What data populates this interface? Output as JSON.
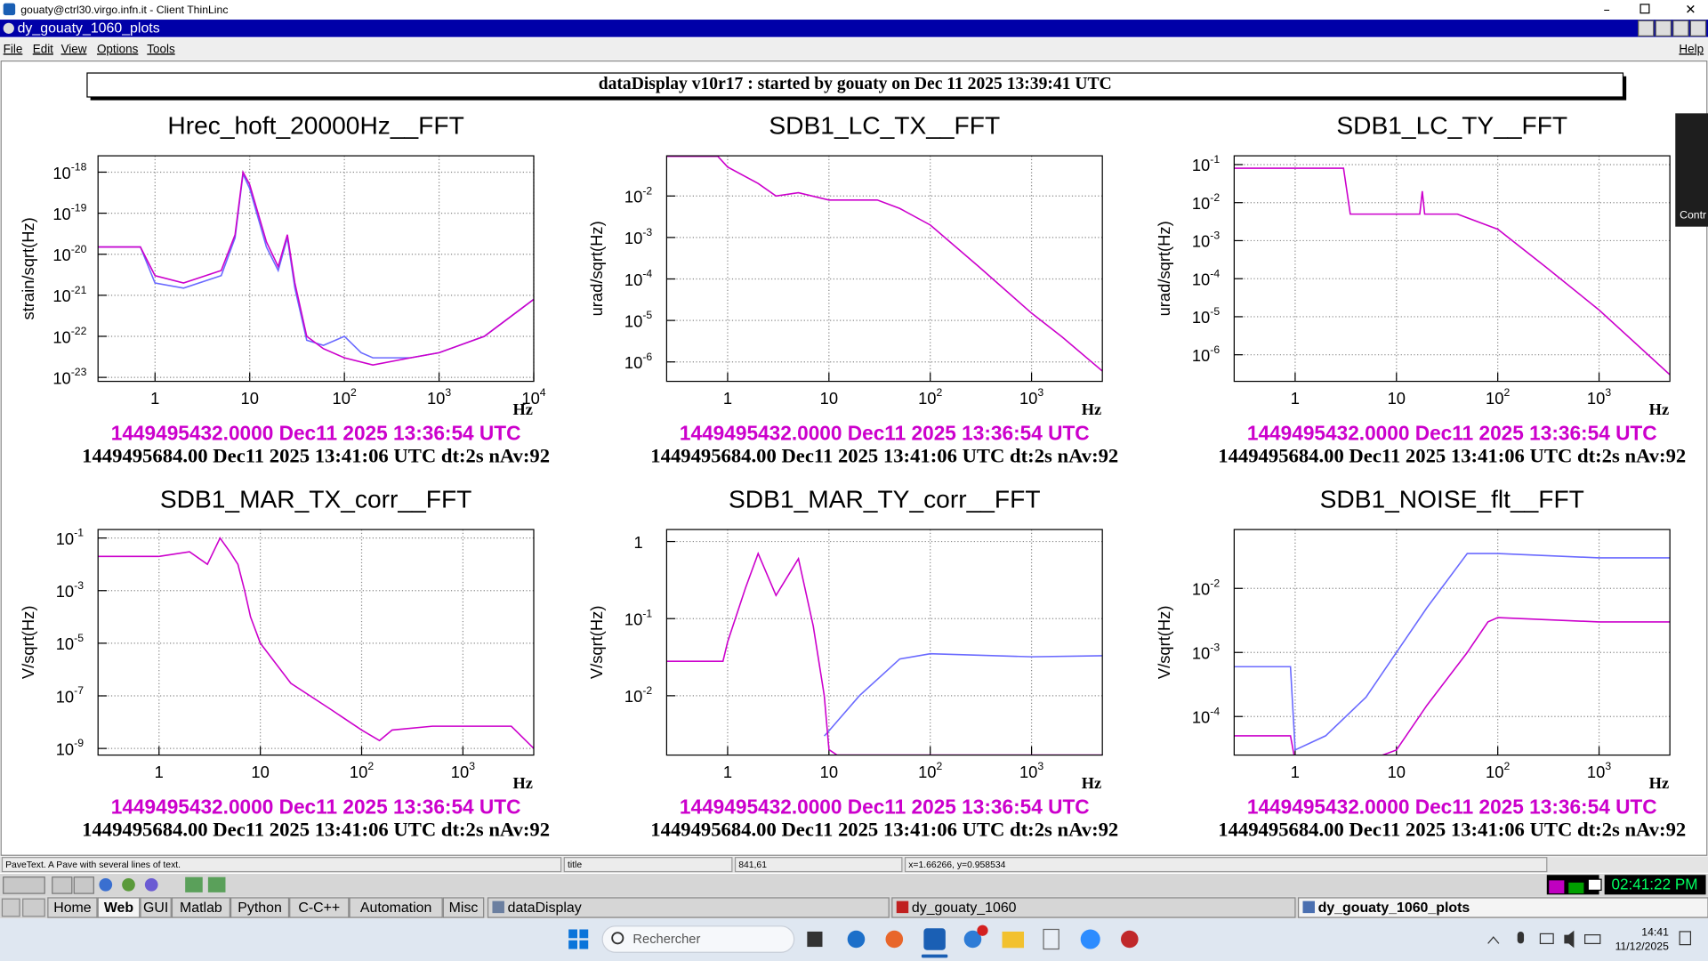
{
  "window": {
    "title": "gouaty@ctrl30.virgo.infn.it - Client ThinLinc",
    "app_title": "dy_gouaty_1060_plots",
    "menu": [
      "File",
      "Edit",
      "View",
      "Options",
      "Tools"
    ],
    "help": "Help"
  },
  "header": "dataDisplay v10r17 : started by gouaty on Dec 11 2025 13:39:41 UTC",
  "side_tab": "Contr",
  "plots": [
    {
      "title": "Hrec_hoft_20000Hz__FFT",
      "ylabel": "strain/sqrt(Hz)",
      "xlabel": "Hz",
      "log": true,
      "xlim": [
        0.25,
        10000
      ],
      "ylim": [
        8e-24,
        2.5e-18
      ],
      "xticks": [
        1,
        10,
        {
          "value": 100,
          "label": "10",
          "exponent": "2"
        },
        {
          "value": 1000,
          "label": "10",
          "exponent": "3"
        },
        {
          "value": 10000,
          "label": "10",
          "exponent": "4"
        }
      ],
      "yticks": [
        {
          "value": 1e-18,
          "label": "10",
          "exponent": "-18"
        },
        {
          "value": 1e-19,
          "label": "10",
          "exponent": "-19"
        },
        {
          "value": 1e-20,
          "label": "10",
          "exponent": "-20"
        },
        {
          "value": 1e-21,
          "label": "10",
          "exponent": "-21"
        },
        {
          "value": 1e-22,
          "label": "10",
          "exponent": "-22"
        },
        {
          "value": 1e-23,
          "label": "10",
          "exponent": "-23"
        }
      ],
      "series": [
        {
          "color": "#6a6aff",
          "x": [
            0.25,
            0.7,
            1,
            2,
            5,
            7,
            8.5,
            10,
            15,
            20,
            25,
            30,
            40,
            60,
            100,
            150,
            200,
            500,
            1000,
            3000,
            10000
          ],
          "values": [
            1.5e-20,
            1.5e-20,
            2e-21,
            1.5e-21,
            3e-21,
            2.5e-20,
            9e-19,
            4e-19,
            1.5e-20,
            4e-21,
            2.5e-20,
            1.5e-21,
            8e-23,
            6e-23,
            1e-22,
            4e-23,
            3e-23,
            3e-23,
            4e-23,
            1e-22,
            8e-22
          ]
        },
        {
          "color": "#cc00cc",
          "x": [
            0.25,
            0.7,
            1,
            2,
            5,
            7,
            8.5,
            10,
            15,
            20,
            25,
            30,
            40,
            60,
            100,
            200,
            500,
            1000,
            3000,
            10000
          ],
          "values": [
            1.5e-20,
            1.5e-20,
            3e-21,
            2e-21,
            4e-21,
            3e-20,
            1e-18,
            5e-19,
            2e-20,
            5e-21,
            3e-20,
            2e-21,
            1e-22,
            5e-23,
            3e-23,
            2e-23,
            3e-23,
            4e-23,
            1e-22,
            8e-22
          ]
        }
      ],
      "time_start": "1449495432.0000 Dec11 2025 13:36:54 UTC",
      "time_end": "1449495684.00 Dec11 2025 13:41:06 UTC dt:2s nAv:92"
    },
    {
      "title": "SDB1_LC_TX__FFT",
      "ylabel": "urad/sqrt(Hz)",
      "xlabel": "Hz",
      "log": true,
      "xlim": [
        0.25,
        5000
      ],
      "ylim": [
        3.4e-07,
        0.093
      ],
      "xticks": [
        1,
        10,
        {
          "value": 100,
          "label": "10",
          "exponent": "2"
        },
        {
          "value": 1000,
          "label": "10",
          "exponent": "3"
        }
      ],
      "yticks": [
        {
          "value": 0.01,
          "label": "10",
          "exponent": "-2"
        },
        {
          "value": 0.001,
          "label": "10",
          "exponent": "-3"
        },
        {
          "value": 0.0001,
          "label": "10",
          "exponent": "-4"
        },
        {
          "value": 1e-05,
          "label": "10",
          "exponent": "-5"
        },
        {
          "value": 1e-06,
          "label": "10",
          "exponent": "-6"
        }
      ],
      "series": [
        {
          "color": "#cc00cc",
          "x": [
            0.25,
            0.8,
            1,
            2,
            3,
            5,
            10,
            30,
            50,
            100,
            300,
            1000,
            2000,
            5000
          ],
          "values": [
            0.09,
            0.09,
            0.05,
            0.02,
            0.01,
            0.012,
            0.008,
            0.008,
            0.005,
            0.002,
            0.0002,
            1.5e-05,
            4e-06,
            6e-07
          ]
        }
      ],
      "time_start": "1449495432.0000 Dec11 2025 13:36:54 UTC",
      "time_end": "1449495684.00 Dec11 2025 13:41:06 UTC dt:2s nAv:92"
    },
    {
      "title": "SDB1_LC_TY__FFT",
      "ylabel": "urad/sqrt(Hz)",
      "xlabel": "Hz",
      "log": true,
      "xlim": [
        0.25,
        5000
      ],
      "ylim": [
        2e-07,
        0.17
      ],
      "xticks": [
        1,
        10,
        {
          "value": 100,
          "label": "10",
          "exponent": "2"
        },
        {
          "value": 1000,
          "label": "10",
          "exponent": "3"
        }
      ],
      "yticks": [
        {
          "value": 0.1,
          "label": "10",
          "exponent": "-1"
        },
        {
          "value": 0.01,
          "label": "10",
          "exponent": "-2"
        },
        {
          "value": 0.001,
          "label": "10",
          "exponent": "-3"
        },
        {
          "value": 0.0001,
          "label": "10",
          "exponent": "-4"
        },
        {
          "value": 1e-05,
          "label": "10",
          "exponent": "-5"
        },
        {
          "value": 1e-06,
          "label": "10",
          "exponent": "-6"
        }
      ],
      "series": [
        {
          "color": "#cc00cc",
          "x": [
            0.25,
            3,
            3.5,
            10,
            17,
            18,
            19,
            40,
            100,
            300,
            1000,
            5000
          ],
          "values": [
            0.08,
            0.08,
            0.005,
            0.005,
            0.005,
            0.02,
            0.005,
            0.005,
            0.002,
            0.0002,
            1.5e-05,
            3e-07
          ]
        }
      ],
      "time_start": "1449495432.0000 Dec11 2025 13:36:54 UTC",
      "time_end": "1449495684.00 Dec11 2025 13:41:06 UTC dt:2s nAv:92"
    },
    {
      "title": "SDB1_MAR_TX_corr__FFT",
      "ylabel": "V/sqrt(Hz)",
      "xlabel": "Hz",
      "log": true,
      "xlim": [
        0.25,
        5000
      ],
      "ylim": [
        5.6e-10,
        0.21
      ],
      "xticks": [
        1,
        10,
        {
          "value": 100,
          "label": "10",
          "exponent": "2"
        },
        {
          "value": 1000,
          "label": "10",
          "exponent": "3"
        }
      ],
      "yticks": [
        {
          "value": 0.1,
          "label": "10",
          "exponent": "-1"
        },
        {
          "value": 0.001,
          "label": "10",
          "exponent": "-3"
        },
        {
          "value": 1e-05,
          "label": "10",
          "exponent": "-5"
        },
        {
          "value": 1e-07,
          "label": "10",
          "exponent": "-7"
        },
        {
          "value": 1e-09,
          "label": "10",
          "exponent": "-9"
        }
      ],
      "series": [
        {
          "color": "#cc00cc",
          "x": [
            0.25,
            1,
            2,
            3,
            4,
            5,
            6,
            7,
            8,
            10,
            20,
            50,
            100,
            150,
            200,
            500,
            1000,
            3000,
            5000
          ],
          "values": [
            0.02,
            0.02,
            0.03,
            0.01,
            0.1,
            0.03,
            0.01,
            0.001,
            0.0001,
            1e-05,
            3e-07,
            3e-08,
            5e-09,
            2e-09,
            5e-09,
            7e-09,
            7e-09,
            7e-09,
            1e-09
          ]
        }
      ],
      "time_start": "1449495432.0000 Dec11 2025 13:36:54 UTC",
      "time_end": "1449495684.00 Dec11 2025 13:41:06 UTC dt:2s nAv:92"
    },
    {
      "title": "SDB1_MAR_TY_corr__FFT",
      "ylabel": "V/sqrt(Hz)",
      "xlabel": "Hz",
      "log": true,
      "xlim": [
        0.25,
        5000
      ],
      "ylim": [
        0.0017,
        1.43
      ],
      "xticks": [
        1,
        10,
        {
          "value": 100,
          "label": "10",
          "exponent": "2"
        },
        {
          "value": 1000,
          "label": "10",
          "exponent": "3"
        }
      ],
      "yticks": [
        1,
        {
          "value": 0.1,
          "label": "10",
          "exponent": "-1"
        },
        {
          "value": 0.01,
          "label": "10",
          "exponent": "-2"
        }
      ],
      "series": [
        {
          "color": "#6a6aff",
          "x": [
            9,
            10,
            20,
            50,
            100,
            1000,
            5000
          ],
          "values": [
            0.003,
            0.0035,
            0.01,
            0.03,
            0.035,
            0.032,
            0.033
          ]
        },
        {
          "color": "#cc00cc",
          "x": [
            0.25,
            0.9,
            1,
            1.5,
            2,
            3,
            5,
            7,
            9,
            10,
            12,
            5000
          ],
          "values": [
            0.028,
            0.028,
            0.05,
            0.25,
            0.7,
            0.2,
            0.6,
            0.08,
            0.01,
            0.002,
            0.0017,
            0.0017
          ]
        }
      ],
      "time_start": "1449495432.0000 Dec11 2025 13:36:54 UTC",
      "time_end": "1449495684.00 Dec11 2025 13:41:06 UTC dt:2s nAv:92"
    },
    {
      "title": "SDB1_NOISE_flt__FFT",
      "ylabel": "V/sqrt(Hz)",
      "xlabel": "Hz",
      "log": true,
      "xlim": [
        0.25,
        5000
      ],
      "ylim": [
        2.5e-05,
        0.083
      ],
      "xticks": [
        1,
        10,
        {
          "value": 100,
          "label": "10",
          "exponent": "2"
        },
        {
          "value": 1000,
          "label": "10",
          "exponent": "3"
        }
      ],
      "yticks": [
        {
          "value": 0.01,
          "label": "10",
          "exponent": "-2"
        },
        {
          "value": 0.001,
          "label": "10",
          "exponent": "-3"
        },
        {
          "value": 0.0001,
          "label": "10",
          "exponent": "-4"
        }
      ],
      "series": [
        {
          "color": "#6a6aff",
          "x": [
            0.25,
            0.9,
            1,
            2,
            5,
            10,
            20,
            50,
            100,
            1000,
            5000
          ],
          "values": [
            0.0006,
            0.0006,
            3e-05,
            5e-05,
            0.0002,
            0.001,
            0.005,
            0.035,
            0.035,
            0.03,
            0.03
          ]
        },
        {
          "color": "#cc00cc",
          "x": [
            0.25,
            0.9,
            1,
            5,
            10,
            20,
            50,
            80,
            100,
            1000,
            5000
          ],
          "values": [
            5e-05,
            5e-05,
            2e-05,
            2e-05,
            3e-05,
            0.00015,
            0.001,
            0.003,
            0.0035,
            0.003,
            0.003
          ]
        }
      ],
      "time_start": "1449495432.0000 Dec11 2025 13:36:54 UTC",
      "time_end": "1449495684.00 Dec11 2025 13:41:06 UTC dt:2s nAv:92"
    }
  ],
  "status_bar": [
    "PaveText. A Pave with several lines of text.",
    "title",
    "841,61",
    "x=1.66266, y=0.958534"
  ],
  "clock": "02:41:22 PM",
  "launcher": [
    "Home",
    "Web",
    "GUI",
    "Matlab",
    "Python",
    "C-C++",
    "Automation",
    "Misc"
  ],
  "tasks": [
    "dataDisplay",
    "dy_gouaty_1060",
    "dy_gouaty_1060_plots"
  ],
  "taskbar": {
    "search": "Rechercher",
    "time": "14:41",
    "date": "11/12/2025"
  }
}
